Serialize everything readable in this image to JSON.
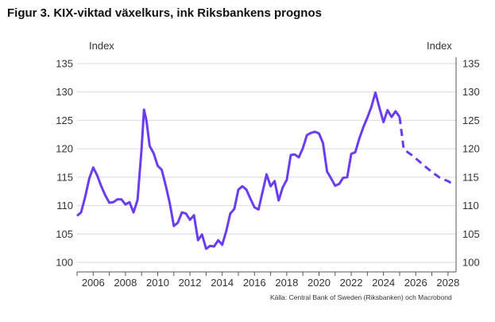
{
  "figure": {
    "title": "Figur 3. KIX-viktad växelkurs, ink Riksbankens prognos",
    "source": "Källa: Central Bank of Sweden (Riksbanken)  och Macrobond"
  },
  "chart_data": {
    "type": "line",
    "title": "Figur 3. KIX-viktad växelkurs, ink Riksbankens prognos",
    "ylabel_left": "Index",
    "ylabel_right": "Index",
    "xlim": [
      2005.0,
      2028.5
    ],
    "ylim": [
      100,
      135
    ],
    "yticks": [
      100,
      105,
      110,
      115,
      120,
      125,
      130,
      135
    ],
    "xticks": [
      2006,
      2008,
      2010,
      2012,
      2014,
      2016,
      2018,
      2020,
      2022,
      2024,
      2026,
      2028
    ],
    "grid": "horizontal",
    "line_color": "#6b3df0",
    "series": [
      {
        "style": "solid",
        "x": [
          2005.0,
          2005.25,
          2005.5,
          2005.75,
          2006.0,
          2006.25,
          2006.5,
          2006.75,
          2007.0,
          2007.25,
          2007.5,
          2007.75,
          2008.0,
          2008.25,
          2008.5,
          2008.75,
          2009.0,
          2009.15,
          2009.3,
          2009.5,
          2009.75,
          2010.0,
          2010.25,
          2010.5,
          2010.75,
          2011.0,
          2011.25,
          2011.5,
          2011.75,
          2012.0,
          2012.25,
          2012.5,
          2012.75,
          2013.0,
          2013.25,
          2013.5,
          2013.75,
          2014.0,
          2014.25,
          2014.5,
          2014.75,
          2015.0,
          2015.25,
          2015.5,
          2015.75,
          2016.0,
          2016.25,
          2016.5,
          2016.75,
          2017.0,
          2017.25,
          2017.5,
          2017.75,
          2018.0,
          2018.25,
          2018.5,
          2018.75,
          2019.0,
          2019.25,
          2019.5,
          2019.75,
          2020.0,
          2020.25,
          2020.5,
          2020.75,
          2021.0,
          2021.25,
          2021.5,
          2021.75,
          2022.0,
          2022.25,
          2022.5,
          2022.75,
          2023.0,
          2023.25,
          2023.5,
          2023.75,
          2024.0,
          2024.25,
          2024.5,
          2024.75,
          2025.0
        ],
        "y": [
          108.2,
          108.8,
          111.5,
          114.7,
          116.7,
          115.3,
          113.4,
          111.8,
          110.5,
          110.6,
          111.1,
          111.1,
          110.2,
          110.6,
          108.8,
          111.0,
          120.0,
          126.9,
          125.0,
          120.5,
          119.2,
          117.0,
          116.3,
          113.5,
          110.4,
          106.4,
          107.0,
          108.8,
          108.6,
          107.5,
          108.3,
          103.9,
          104.9,
          102.4,
          102.9,
          102.8,
          103.9,
          103.1,
          105.5,
          108.6,
          109.4,
          112.8,
          113.4,
          112.8,
          111.2,
          109.7,
          109.3,
          112.4,
          115.5,
          113.4,
          114.3,
          110.9,
          113.2,
          114.5,
          118.9,
          119.0,
          118.5,
          120.1,
          122.4,
          122.8,
          123.0,
          122.7,
          121.0,
          116.0,
          114.8,
          113.5,
          113.8,
          114.9,
          115.0,
          119.1,
          119.4,
          121.8,
          123.8,
          125.5,
          127.4,
          129.9,
          127.2,
          124.7,
          126.8,
          125.6,
          126.6,
          125.6
        ]
      },
      {
        "style": "dashed",
        "x": [
          2025.0,
          2025.25,
          2025.5,
          2025.75,
          2026.0,
          2026.25,
          2026.5,
          2026.75,
          2027.0,
          2027.25,
          2027.5,
          2027.75,
          2028.0,
          2028.25
        ],
        "y": [
          125.6,
          120.0,
          119.4,
          118.9,
          118.3,
          117.7,
          117.1,
          116.5,
          115.9,
          115.4,
          114.9,
          114.6,
          114.3,
          113.9
        ]
      }
    ]
  }
}
